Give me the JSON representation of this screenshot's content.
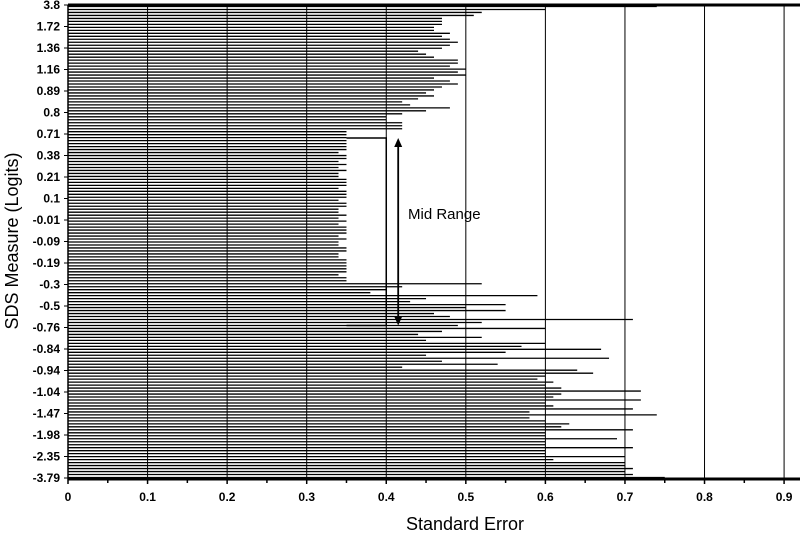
{
  "chart_data": {
    "type": "bar",
    "orientation": "horizontal",
    "title": "",
    "xlabel": "Standard Error",
    "ylabel": "SDS Measure (Logits)",
    "xlim": [
      0,
      0.92
    ],
    "xticks": [
      "0",
      "0.1",
      "0.2",
      "0.3",
      "0.4",
      "0.5",
      "0.6",
      "0.7",
      "0.8",
      "0.9"
    ],
    "ytick_labels": [
      "3.8",
      "1.72",
      "1.36",
      "1.16",
      "0.89",
      "0.8",
      "0.71",
      "0.38",
      "0.21",
      "0.1",
      "-0.01",
      "-0.09",
      "-0.19",
      "-0.3",
      "-0.5",
      "-0.76",
      "-0.84",
      "-0.94",
      "-1.04",
      "-1.47",
      "-1.98",
      "-2.35",
      "-3.79"
    ],
    "grid": {
      "vertical": true,
      "horizontal": false
    },
    "legend": "none",
    "bar_color": "#000000",
    "annotation": {
      "text": "Mid Range",
      "arrow_from": "0.71",
      "arrow_to": "-0.76"
    },
    "values": [
      0.74,
      0.6,
      0.52,
      0.51,
      0.47,
      0.47,
      0.47,
      0.46,
      0.46,
      0.48,
      0.47,
      0.48,
      0.49,
      0.48,
      0.47,
      0.44,
      0.45,
      0.46,
      0.49,
      0.49,
      0.48,
      0.5,
      0.49,
      0.5,
      0.46,
      0.48,
      0.49,
      0.47,
      0.46,
      0.45,
      0.46,
      0.44,
      0.42,
      0.43,
      0.48,
      0.45,
      0.42,
      0.4,
      0.4,
      0.42,
      0.42,
      0.42,
      0.35,
      0.35,
      0.35,
      0.35,
      0.35,
      0.35,
      0.35,
      0.34,
      0.35,
      0.35,
      0.34,
      0.35,
      0.34,
      0.35,
      0.34,
      0.34,
      0.35,
      0.35,
      0.35,
      0.34,
      0.35,
      0.35,
      0.35,
      0.34,
      0.35,
      0.35,
      0.34,
      0.34,
      0.35,
      0.34,
      0.35,
      0.34,
      0.35,
      0.35,
      0.35,
      0.34,
      0.35,
      0.34,
      0.34,
      0.35,
      0.35,
      0.34,
      0.34,
      0.35,
      0.35,
      0.35,
      0.35,
      0.35,
      0.34,
      0.35,
      0.35,
      0.52,
      0.42,
      0.4,
      0.38,
      0.59,
      0.45,
      0.43,
      0.55,
      0.5,
      0.55,
      0.46,
      0.48,
      0.71,
      0.52,
      0.49,
      0.6,
      0.47,
      0.44,
      0.52,
      0.45,
      0.6,
      0.57,
      0.67,
      0.55,
      0.45,
      0.68,
      0.47,
      0.54,
      0.42,
      0.64,
      0.66,
      0.6,
      0.59,
      0.61,
      0.6,
      0.62,
      0.72,
      0.62,
      0.61,
      0.72,
      0.6,
      0.61,
      0.71,
      0.58,
      0.74,
      0.58,
      0.6,
      0.63,
      0.62,
      0.71,
      0.6,
      0.6,
      0.69,
      0.6,
      0.6,
      0.71,
      0.6,
      0.6,
      0.7,
      0.61,
      0.7,
      0.7,
      0.71,
      0.7,
      0.71,
      0.75
    ]
  }
}
